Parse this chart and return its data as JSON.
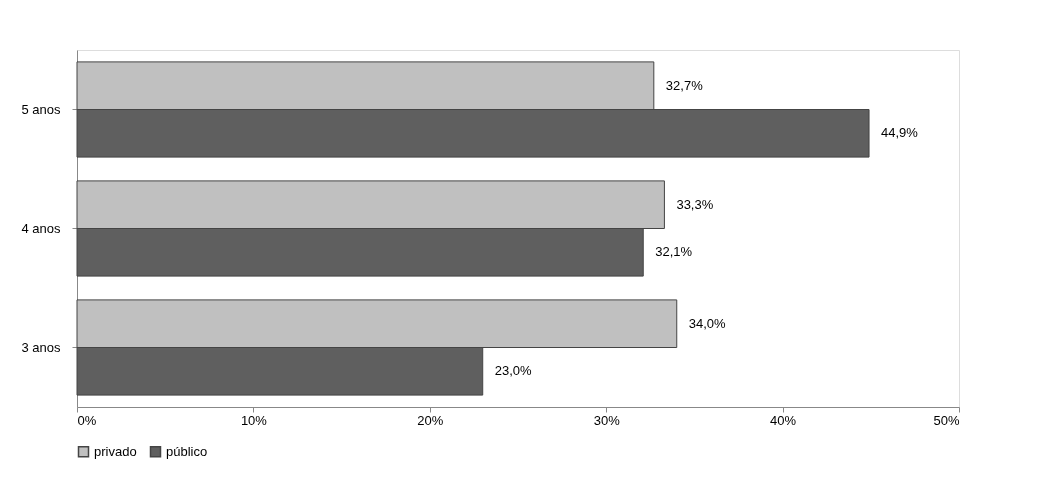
{
  "chart_data": {
    "type": "bar",
    "orientation": "horizontal",
    "categories": [
      "5 anos",
      "4 anos",
      "3 anos"
    ],
    "series": [
      {
        "name": "privado",
        "color": "#c0c0c0",
        "values": [
          32.7,
          33.3,
          34.0
        ],
        "value_labels": [
          "32,7%",
          "33,3%",
          "34,0%"
        ]
      },
      {
        "name": "público",
        "color": "#5f5f5f",
        "values": [
          44.9,
          32.1,
          23.0
        ],
        "value_labels": [
          "44,9%",
          "32,1%",
          "23,0%"
        ]
      }
    ],
    "xlim": [
      0,
      50
    ],
    "xticks": [
      {
        "value": 0,
        "label": "0%"
      },
      {
        "value": 10,
        "label": "10%"
      },
      {
        "value": 20,
        "label": "20%"
      },
      {
        "value": 30,
        "label": "30%"
      },
      {
        "value": 40,
        "label": "40%"
      },
      {
        "value": 50,
        "label": "50%"
      }
    ],
    "legend": "bottom"
  }
}
